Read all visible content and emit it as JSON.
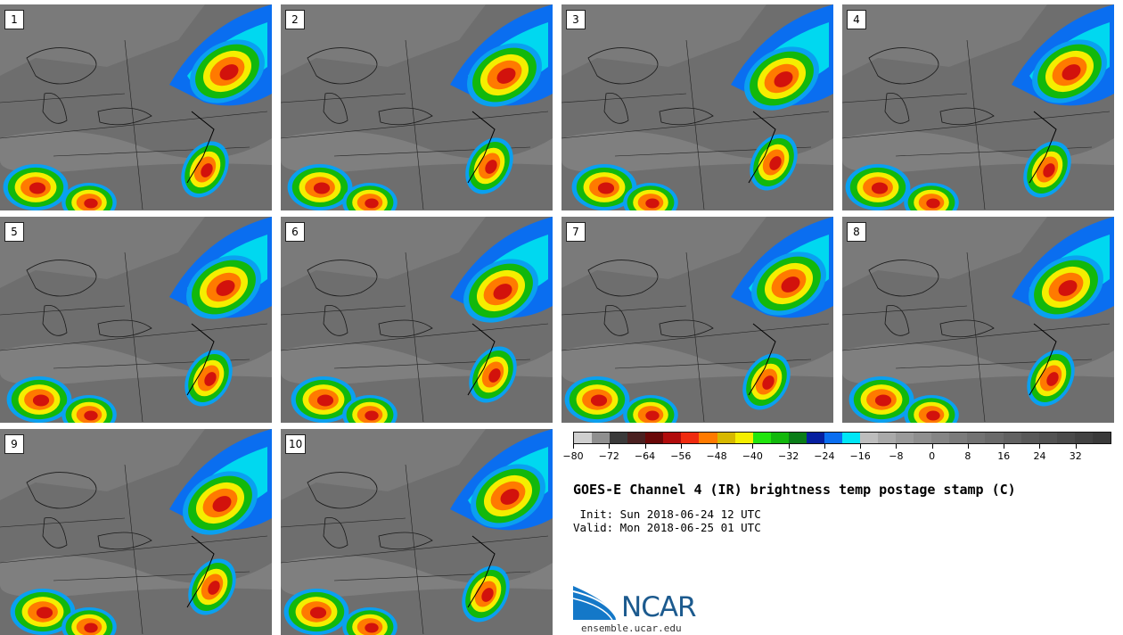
{
  "panels": [
    {
      "label": "1"
    },
    {
      "label": "2"
    },
    {
      "label": "3"
    },
    {
      "label": "4"
    },
    {
      "label": "5"
    },
    {
      "label": "6"
    },
    {
      "label": "7"
    },
    {
      "label": "8"
    },
    {
      "label": "9"
    },
    {
      "label": "10"
    }
  ],
  "colorbar": {
    "colors": [
      "#cfcfcf",
      "#8f8f8f",
      "#3a3a3a",
      "#4a2020",
      "#6a0808",
      "#b10c0c",
      "#ef2b10",
      "#ff7a00",
      "#d7b800",
      "#f5ee00",
      "#21e50e",
      "#12b80c",
      "#0a7d18",
      "#061fa0",
      "#0a6ef0",
      "#00e6f6",
      "#bdbdbd",
      "#a9a9a9",
      "#9a9a9a",
      "#8f8f8f",
      "#858585",
      "#7b7b7b",
      "#727272",
      "#6a6a6a",
      "#616161",
      "#595959",
      "#525252",
      "#4a4a4a",
      "#424242",
      "#3a3a3a"
    ],
    "ticks": [
      "−80",
      "−72",
      "−64",
      "−56",
      "−48",
      "−40",
      "−32",
      "−24",
      "−16",
      "−8",
      "0",
      "8",
      "16",
      "24",
      "32"
    ]
  },
  "title": "GOES-E Channel 4 (IR) brightness temp postage stamp (C)",
  "init": " Init: Sun 2018-06-24 12 UTC",
  "valid": "Valid: Mon 2018-06-25 01 UTC",
  "logo": {
    "text": "NCAR",
    "website": "ensemble.ucar.edu"
  }
}
